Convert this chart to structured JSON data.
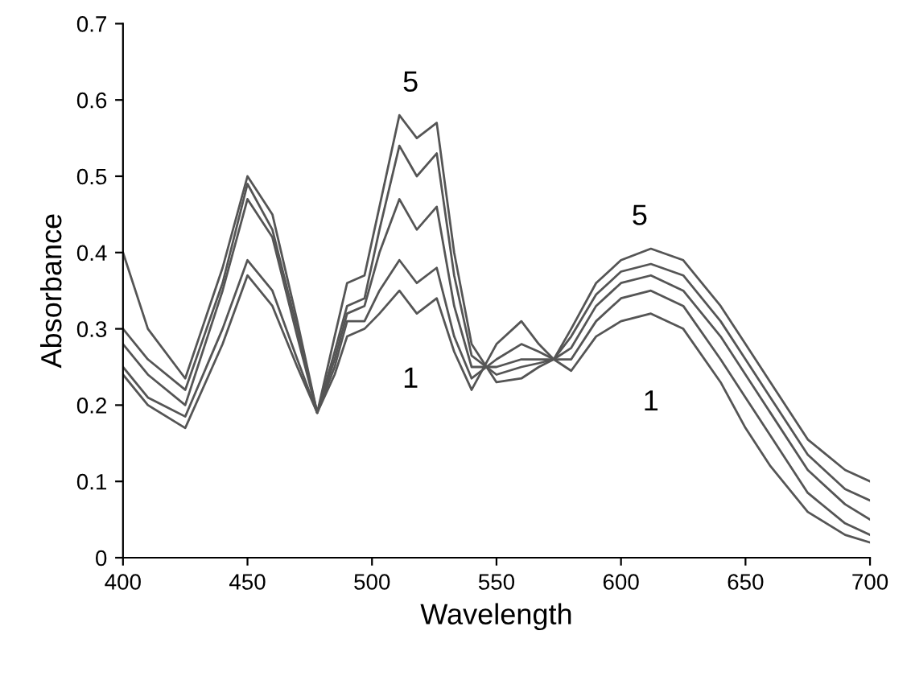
{
  "chart_data": {
    "type": "line",
    "xlabel": "Wavelength",
    "ylabel": "Absorbance",
    "x": [
      400,
      410,
      425,
      440,
      450,
      460,
      470,
      478,
      485,
      490,
      497,
      503,
      511,
      518,
      526,
      533,
      540,
      550,
      560,
      567,
      573,
      580,
      590,
      600,
      612,
      625,
      640,
      650,
      660,
      675,
      690,
      700
    ],
    "series": [
      {
        "name": "5",
        "color": "#555555",
        "values": [
          0.4,
          0.3,
          0.235,
          0.38,
          0.5,
          0.45,
          0.31,
          0.19,
          0.29,
          0.36,
          0.37,
          0.46,
          0.58,
          0.55,
          0.57,
          0.4,
          0.28,
          0.23,
          0.235,
          0.25,
          0.26,
          0.3,
          0.36,
          0.39,
          0.405,
          0.39,
          0.33,
          0.28,
          0.23,
          0.155,
          0.115,
          0.1
        ]
      },
      {
        "color": "#555555",
        "values": [
          0.3,
          0.26,
          0.22,
          0.36,
          0.49,
          0.43,
          0.3,
          0.19,
          0.27,
          0.33,
          0.34,
          0.43,
          0.54,
          0.5,
          0.53,
          0.37,
          0.265,
          0.24,
          0.25,
          0.255,
          0.26,
          0.29,
          0.345,
          0.375,
          0.385,
          0.37,
          0.31,
          0.26,
          0.21,
          0.135,
          0.09,
          0.075
        ]
      },
      {
        "color": "#555555",
        "values": [
          0.28,
          0.24,
          0.2,
          0.35,
          0.47,
          0.42,
          0.29,
          0.19,
          0.26,
          0.32,
          0.33,
          0.4,
          0.47,
          0.43,
          0.46,
          0.33,
          0.25,
          0.25,
          0.26,
          0.26,
          0.26,
          0.275,
          0.33,
          0.36,
          0.37,
          0.35,
          0.29,
          0.24,
          0.19,
          0.115,
          0.07,
          0.05
        ]
      },
      {
        "color": "#555555",
        "values": [
          0.25,
          0.21,
          0.185,
          0.3,
          0.39,
          0.35,
          0.26,
          0.19,
          0.25,
          0.31,
          0.31,
          0.35,
          0.39,
          0.36,
          0.38,
          0.29,
          0.235,
          0.26,
          0.28,
          0.27,
          0.26,
          0.26,
          0.31,
          0.34,
          0.35,
          0.33,
          0.26,
          0.21,
          0.16,
          0.085,
          0.045,
          0.03
        ]
      },
      {
        "name": "1",
        "color": "#555555",
        "values": [
          0.24,
          0.2,
          0.17,
          0.28,
          0.37,
          0.33,
          0.25,
          0.19,
          0.24,
          0.29,
          0.3,
          0.32,
          0.35,
          0.32,
          0.34,
          0.27,
          0.22,
          0.28,
          0.31,
          0.28,
          0.26,
          0.245,
          0.29,
          0.31,
          0.32,
          0.3,
          0.23,
          0.17,
          0.12,
          0.06,
          0.03,
          0.02
        ]
      }
    ],
    "xlim": [
      400,
      700
    ],
    "xticks": [
      400,
      450,
      500,
      550,
      600,
      650,
      700
    ],
    "ylim": [
      0,
      0.7
    ],
    "yticks": [
      0,
      0.1,
      0.2,
      0.3,
      0.4,
      0.5,
      0.6,
      0.7
    ],
    "grid": false,
    "legend": false,
    "marker": "none",
    "line_style": "solid"
  }
}
